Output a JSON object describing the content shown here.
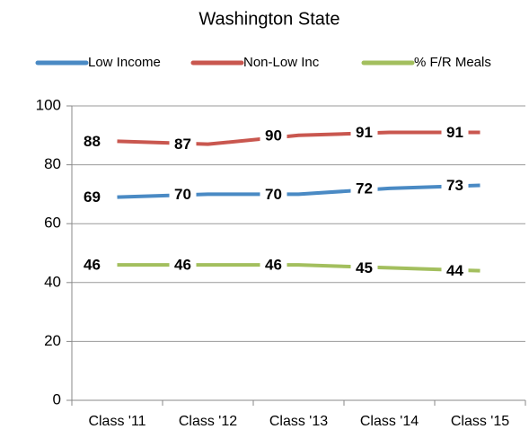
{
  "chart_data": {
    "type": "line",
    "title": "Washington State",
    "categories": [
      "Class '11",
      "Class '12",
      "Class '13",
      "Class '14",
      "Class '15"
    ],
    "series": [
      {
        "name": "Low Income",
        "color": "#4a8ac4",
        "values": [
          69,
          70,
          70,
          72,
          73
        ]
      },
      {
        "name": "Non-Low Inc",
        "color": "#c9574f",
        "values": [
          88,
          87,
          90,
          91,
          91
        ]
      },
      {
        "name": "% F/R Meals",
        "color": "#a3bf5e",
        "values": [
          46,
          46,
          46,
          45,
          44
        ]
      }
    ],
    "ylim": [
      0,
      100
    ],
    "yticks": [
      0,
      20,
      40,
      60,
      80,
      100
    ],
    "grid": true,
    "legend": "top"
  }
}
